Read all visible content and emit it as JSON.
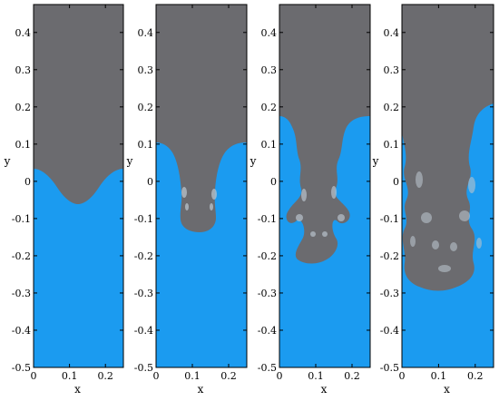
{
  "figure": {
    "description_panels": 4,
    "colors": {
      "heavy_fluid": "#6b6b6f",
      "light_fluid": "#1b9bf0",
      "mixing": "#b9c3cc",
      "frame": "#000000"
    },
    "x_axis": {
      "label": "x",
      "ticks": [
        "0",
        "0.1",
        "0.2"
      ],
      "range": [
        0,
        0.25
      ]
    },
    "y_axis": {
      "label": "y",
      "ticks": [
        "0.4",
        "0.3",
        "0.2",
        "0.1",
        "0",
        "-0.1",
        "-0.2",
        "-0.3",
        "-0.4",
        "-0.5"
      ],
      "range": [
        -0.5,
        0.475
      ]
    },
    "panels": [
      {
        "id": "panel-1",
        "stage": "early"
      },
      {
        "id": "panel-2",
        "stage": "spike"
      },
      {
        "id": "panel-3",
        "stage": "rollup"
      },
      {
        "id": "panel-4",
        "stage": "mixing"
      }
    ]
  }
}
